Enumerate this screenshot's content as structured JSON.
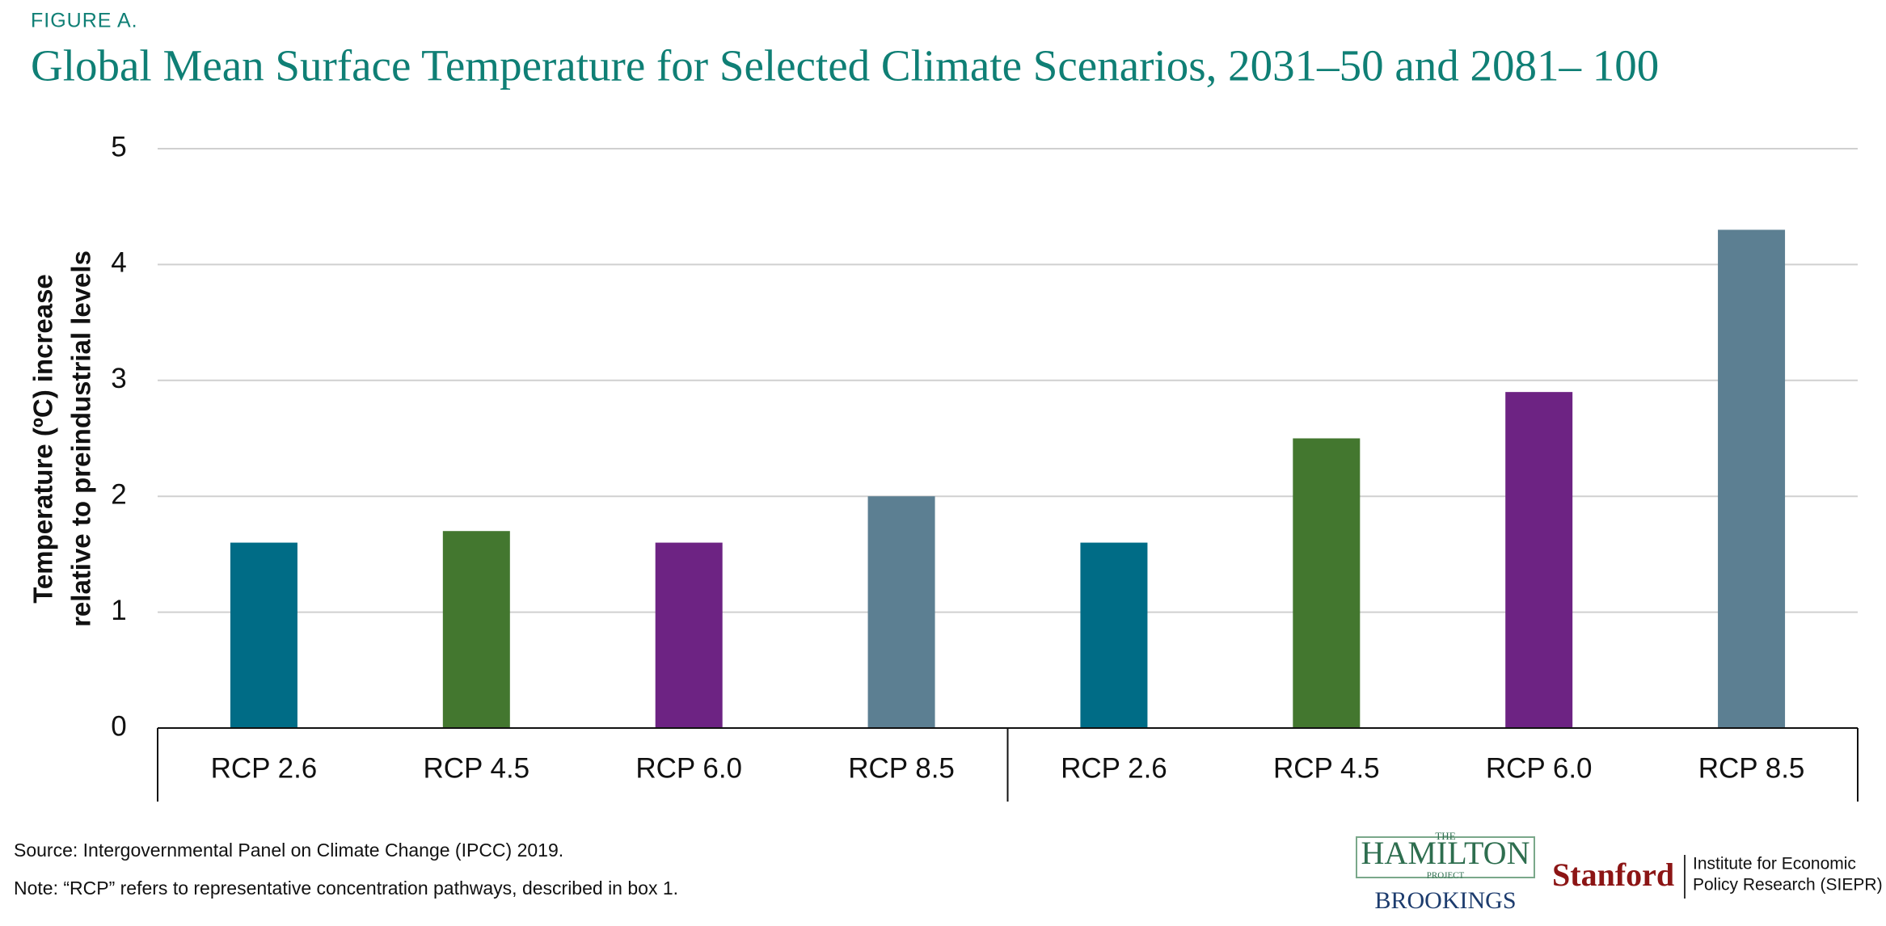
{
  "chart_data": {
    "type": "bar",
    "kicker": "FIGURE A.",
    "title": "Global Mean Surface Temperature for Selected Climate Scenarios, 2031–50 and 2081– 100",
    "ylabel": [
      "Temperature (ºC) increase",
      "relative to preindustrial levels"
    ],
    "categories": [
      "RCP 2.6",
      "RCP 4.5",
      "RCP 6.0",
      "RCP 8.5",
      "RCP 2.6",
      "RCP 4.5",
      "RCP 6.0",
      "RCP 8.5"
    ],
    "values": [
      1.6,
      1.7,
      1.6,
      2.0,
      1.6,
      2.5,
      2.9,
      4.3
    ],
    "colors": [
      "#006c86",
      "#43772f",
      "#6d2383",
      "#5c7f92",
      "#006c86",
      "#43772f",
      "#6d2383",
      "#5c7f92"
    ],
    "ylim": [
      0,
      5
    ],
    "yticks": [
      0,
      1,
      2,
      3,
      4,
      5
    ],
    "grid": true
  },
  "footer": {
    "source": "Source: Intergovernmental Panel on Climate Change (IPCC) 2019.",
    "note": "Note: “RCP” refers to representative concentration pathways, described in box 1.",
    "logo_the": "THE",
    "logo_hamilton": "HAMILTON",
    "logo_project": "PROJECT",
    "logo_brookings": "BROOKINGS",
    "logo_stanford": "Stanford",
    "logo_siepr_1": "Institute for Economic",
    "logo_siepr_2": "Policy Research (SIEPR)"
  }
}
